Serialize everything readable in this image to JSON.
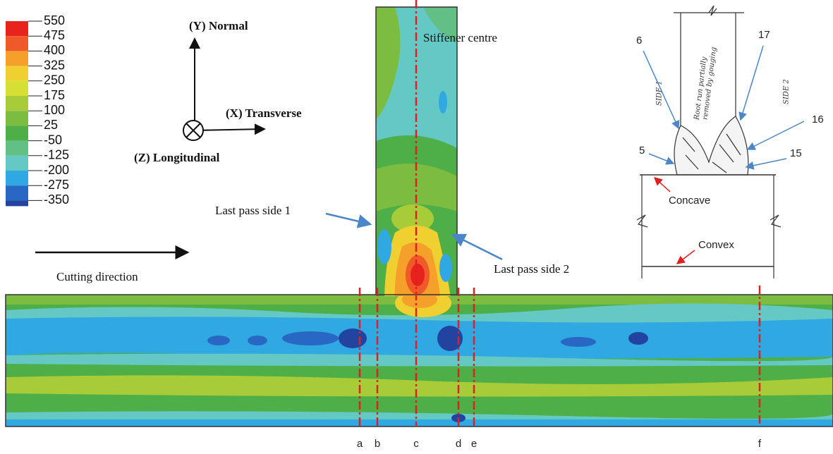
{
  "legend": {
    "levels": [
      "550",
      "475",
      "400",
      "325",
      "250",
      "175",
      "100",
      "25",
      "-50",
      "-125",
      "-200",
      "-275",
      "-350"
    ],
    "colors": [
      "#e8231e",
      "#f05a28",
      "#f5a02a",
      "#f0d030",
      "#d6e034",
      "#a8cc38",
      "#7cbc40",
      "#4eae48",
      "#62c084",
      "#64c8c4",
      "#30a8e2",
      "#2868c4",
      "#2244a0"
    ]
  },
  "axes": {
    "y": "(Y) Normal",
    "x": "(X) Transverse",
    "z": "(Z) Longitudinal"
  },
  "annotations": {
    "stiffener_centre": "Stiffener centre",
    "last_pass_1": "Last pass side 1",
    "last_pass_2": "Last pass side 2",
    "cutting_direction": "Cutting direction"
  },
  "sections": [
    "a",
    "b",
    "c",
    "d",
    "e",
    "f"
  ],
  "sketch": {
    "side_1": "SIDE 1",
    "side_2": "SIDE 2",
    "root_note": [
      "Root run partially",
      "removed by gouging"
    ],
    "pass_labels": [
      "6",
      "17",
      "16",
      "5",
      "15"
    ],
    "concave": "Concave",
    "convex": "Convex"
  }
}
